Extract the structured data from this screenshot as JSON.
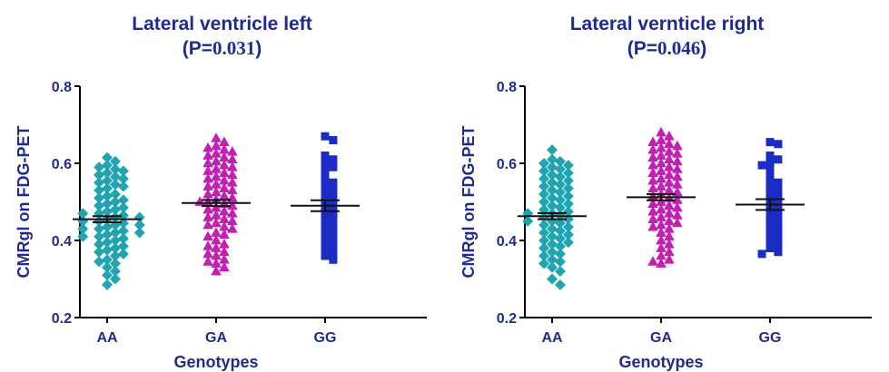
{
  "chart_data": [
    {
      "type": "scatter",
      "subtype": "dot-plot with mean and SEM",
      "title": "Lateral ventricle left",
      "subtitle_prefix": "(P=",
      "subtitle_value": "0.031",
      "subtitle_suffix": ")",
      "xlabel": "Genotypes",
      "ylabel": "CMRgl on FDG-PET",
      "categories": [
        "AA",
        "GA",
        "GG"
      ],
      "ylim": [
        0.2,
        0.8
      ],
      "yticks": [
        0.2,
        0.4,
        0.6,
        0.8
      ],
      "ytick_labels": [
        "0.2",
        "0.4",
        "0.6",
        "0.8"
      ],
      "grid": false,
      "series": [
        {
          "category": "AA",
          "marker": "diamond",
          "color": "#20a5b0",
          "mean": 0.455,
          "sem": 0.008,
          "values": [
            0.615,
            0.605,
            0.595,
            0.59,
            0.585,
            0.58,
            0.575,
            0.57,
            0.565,
            0.56,
            0.555,
            0.55,
            0.545,
            0.54,
            0.535,
            0.53,
            0.52,
            0.515,
            0.51,
            0.505,
            0.5,
            0.495,
            0.49,
            0.485,
            0.48,
            0.475,
            0.47,
            0.47,
            0.465,
            0.46,
            0.46,
            0.455,
            0.45,
            0.45,
            0.445,
            0.44,
            0.44,
            0.435,
            0.43,
            0.43,
            0.425,
            0.42,
            0.42,
            0.415,
            0.41,
            0.41,
            0.405,
            0.4,
            0.395,
            0.39,
            0.385,
            0.38,
            0.375,
            0.37,
            0.365,
            0.36,
            0.35,
            0.345,
            0.34,
            0.33,
            0.32,
            0.31,
            0.3,
            0.285
          ]
        },
        {
          "category": "GA",
          "marker": "triangle",
          "color": "#c21fb3",
          "mean": 0.497,
          "sem": 0.008,
          "values": [
            0.665,
            0.655,
            0.645,
            0.64,
            0.635,
            0.63,
            0.625,
            0.62,
            0.615,
            0.61,
            0.605,
            0.6,
            0.595,
            0.59,
            0.585,
            0.58,
            0.575,
            0.57,
            0.565,
            0.56,
            0.555,
            0.55,
            0.545,
            0.54,
            0.535,
            0.53,
            0.525,
            0.52,
            0.515,
            0.51,
            0.505,
            0.5,
            0.5,
            0.495,
            0.49,
            0.485,
            0.48,
            0.475,
            0.47,
            0.465,
            0.46,
            0.455,
            0.45,
            0.445,
            0.44,
            0.435,
            0.43,
            0.42,
            0.415,
            0.41,
            0.4,
            0.39,
            0.385,
            0.38,
            0.37,
            0.365,
            0.36,
            0.35,
            0.345,
            0.34,
            0.33,
            0.32
          ]
        },
        {
          "category": "GG",
          "marker": "square",
          "color": "#1a2cc4",
          "mean": 0.49,
          "sem": 0.014,
          "values": [
            0.67,
            0.66,
            0.62,
            0.61,
            0.6,
            0.59,
            0.58,
            0.56,
            0.55,
            0.54,
            0.53,
            0.52,
            0.51,
            0.5,
            0.49,
            0.48,
            0.47,
            0.46,
            0.45,
            0.44,
            0.43,
            0.42,
            0.41,
            0.4,
            0.39,
            0.38,
            0.37,
            0.36,
            0.35
          ]
        }
      ]
    },
    {
      "type": "scatter",
      "subtype": "dot-plot with mean and SEM",
      "title": "Lateral vernticle right",
      "subtitle_prefix": "(P=",
      "subtitle_value": "0.046",
      "subtitle_suffix": ")",
      "xlabel": "Genotypes",
      "ylabel": "CMRgl on FDG-PET",
      "categories": [
        "AA",
        "GA",
        "GG"
      ],
      "ylim": [
        0.2,
        0.8
      ],
      "yticks": [
        0.2,
        0.4,
        0.6,
        0.8
      ],
      "ytick_labels": [
        "0.2",
        "0.4",
        "0.6",
        "0.8"
      ],
      "grid": false,
      "series": [
        {
          "category": "AA",
          "marker": "diamond",
          "color": "#20a5b0",
          "mean": 0.463,
          "sem": 0.008,
          "values": [
            0.635,
            0.61,
            0.605,
            0.6,
            0.595,
            0.59,
            0.585,
            0.58,
            0.575,
            0.57,
            0.565,
            0.56,
            0.555,
            0.55,
            0.545,
            0.54,
            0.535,
            0.53,
            0.525,
            0.52,
            0.515,
            0.51,
            0.505,
            0.5,
            0.495,
            0.49,
            0.485,
            0.48,
            0.475,
            0.47,
            0.47,
            0.465,
            0.46,
            0.455,
            0.45,
            0.45,
            0.445,
            0.44,
            0.435,
            0.43,
            0.425,
            0.42,
            0.415,
            0.41,
            0.405,
            0.4,
            0.395,
            0.39,
            0.385,
            0.38,
            0.37,
            0.365,
            0.36,
            0.35,
            0.345,
            0.34,
            0.33,
            0.32,
            0.3,
            0.285
          ]
        },
        {
          "category": "GA",
          "marker": "triangle",
          "color": "#c21fb3",
          "mean": 0.512,
          "sem": 0.008,
          "values": [
            0.68,
            0.67,
            0.66,
            0.655,
            0.65,
            0.645,
            0.64,
            0.635,
            0.63,
            0.625,
            0.62,
            0.615,
            0.61,
            0.605,
            0.6,
            0.595,
            0.59,
            0.585,
            0.58,
            0.575,
            0.57,
            0.565,
            0.56,
            0.555,
            0.55,
            0.545,
            0.54,
            0.535,
            0.53,
            0.525,
            0.52,
            0.515,
            0.51,
            0.505,
            0.5,
            0.495,
            0.49,
            0.485,
            0.48,
            0.475,
            0.47,
            0.465,
            0.46,
            0.455,
            0.45,
            0.445,
            0.44,
            0.435,
            0.43,
            0.42,
            0.41,
            0.4,
            0.39,
            0.38,
            0.37,
            0.36,
            0.35,
            0.345,
            0.34
          ]
        },
        {
          "category": "GG",
          "marker": "square",
          "color": "#1a2cc4",
          "mean": 0.493,
          "sem": 0.014,
          "values": [
            0.655,
            0.65,
            0.62,
            0.61,
            0.6,
            0.595,
            0.58,
            0.56,
            0.55,
            0.54,
            0.53,
            0.52,
            0.51,
            0.5,
            0.49,
            0.48,
            0.47,
            0.46,
            0.45,
            0.44,
            0.43,
            0.42,
            0.41,
            0.4,
            0.39,
            0.38,
            0.37,
            0.365
          ]
        }
      ]
    }
  ]
}
